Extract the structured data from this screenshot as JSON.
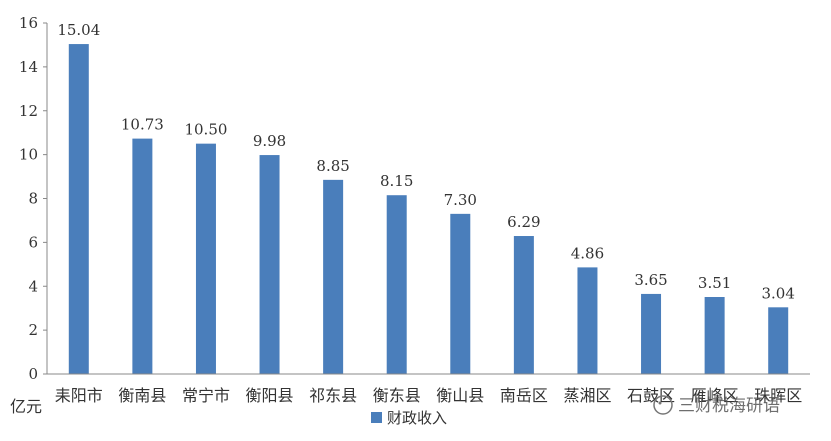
{
  "chart_data": {
    "type": "bar",
    "categories": [
      "耒阳市",
      "衡南县",
      "常宁市",
      "衡阳县",
      "祁东县",
      "衡东县",
      "衡山县",
      "南岳区",
      "蒸湘区",
      "石鼓区",
      "雁峰区",
      "珠晖区"
    ],
    "series": [
      {
        "name": "财政收入",
        "values": [
          15.04,
          10.73,
          10.5,
          9.98,
          8.85,
          8.15,
          7.3,
          6.29,
          4.86,
          3.65,
          3.51,
          3.04
        ],
        "labels": [
          "15.04",
          "10.73",
          "10.50",
          "9.98",
          "8.85",
          "8.15",
          "7.30",
          "6.29",
          "4.86",
          "3.65",
          "3.51",
          "3.04"
        ],
        "color": "#4a7ebb"
      }
    ],
    "y_ticks": [
      "0",
      "2",
      "4",
      "6",
      "8",
      "10",
      "12",
      "14",
      "16"
    ],
    "ylim": [
      0,
      16
    ],
    "ylabel": "亿元",
    "grid": false,
    "legend": "bottom-center"
  },
  "watermark": "三财税海研语"
}
